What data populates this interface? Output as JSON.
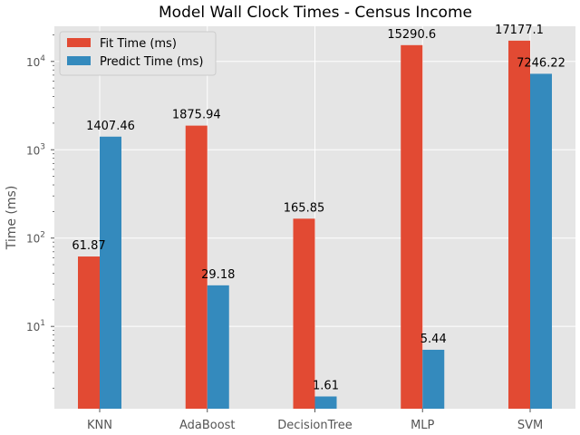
{
  "chart_data": {
    "type": "bar",
    "title": "Model Wall Clock Times - Census Income",
    "xlabel": "",
    "ylabel": "Time (ms)",
    "yscale": "log",
    "ylim": [
      1.17,
      25000
    ],
    "yticks": [
      10,
      100,
      1000,
      10000
    ],
    "ytick_labels": [
      {
        "base": "10",
        "exp": "1"
      },
      {
        "base": "10",
        "exp": "2"
      },
      {
        "base": "10",
        "exp": "3"
      },
      {
        "base": "10",
        "exp": "4"
      }
    ],
    "categories": [
      "KNN",
      "AdaBoost",
      "DecisionTree",
      "MLP",
      "SVM"
    ],
    "series": [
      {
        "name": "Fit Time (ms)",
        "color": "#E24A33",
        "values": [
          61.87,
          1875.94,
          165.85,
          15290.6,
          17177.1
        ],
        "labels": [
          "61.87",
          "1875.94",
          "165.85",
          "15290.6",
          "17177.1"
        ]
      },
      {
        "name": "Predict Time (ms)",
        "color": "#348ABD",
        "values": [
          1407.46,
          29.18,
          1.61,
          5.44,
          7246.22
        ],
        "labels": [
          "1407.46",
          "29.18",
          "1.61",
          "5.44",
          "7246.22"
        ]
      }
    ],
    "legend": "top-left",
    "grid": true,
    "style": {
      "background": "#E5E5E5",
      "grid_color": "#FFFFFF",
      "text_color": "#555555"
    }
  }
}
